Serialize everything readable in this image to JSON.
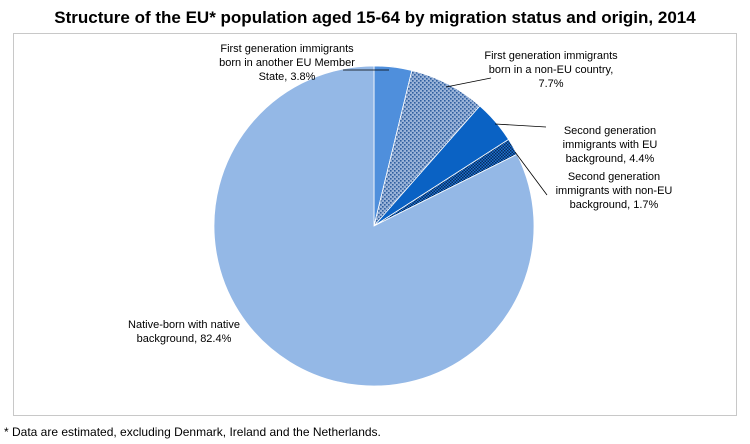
{
  "chart_data": {
    "type": "pie",
    "title": "Structure of the EU* population aged 15-64 by migration status and origin, 2014",
    "footnote": "* Data are estimated, excluding Denmark, Ireland and the Netherlands.",
    "slices": [
      {
        "name": "First generation immigrants born in another EU Member State",
        "value": 3.8,
        "label_lines": [
          "First generation immigrants",
          "born in another EU Member",
          "State, 3.8%"
        ],
        "color": "#4f8fdc",
        "pattern": "none"
      },
      {
        "name": "First generation immigrants born in a non-EU country",
        "value": 7.7,
        "label_lines": [
          "First generation immigrants",
          "born in a non-EU country,",
          "7.7%"
        ],
        "color": "#7fa4d8",
        "pattern": "dots"
      },
      {
        "name": "Second generation immigrants with EU background",
        "value": 4.4,
        "label_lines": [
          "Second generation",
          "immigrants with EU",
          "background, 4.4%"
        ],
        "color": "#0a62c4",
        "pattern": "none"
      },
      {
        "name": "Second generation immigrants with non-EU background",
        "value": 1.7,
        "label_lines": [
          "Second generation",
          "immigrants with non-EU",
          "background, 1.7%"
        ],
        "color": "#0b4f9e",
        "pattern": "checker"
      },
      {
        "name": "Native-born with native background",
        "value": 82.4,
        "label_lines": [
          "Native-born with native",
          "background, 82.4%"
        ],
        "color": "#94b8e6",
        "pattern": "none"
      }
    ]
  }
}
